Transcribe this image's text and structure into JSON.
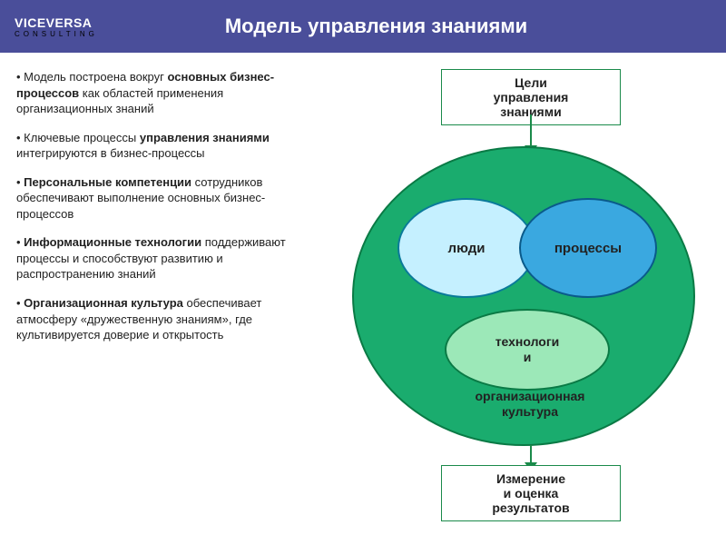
{
  "header": {
    "logo": "VICEVERSA",
    "logo_sub": "CONSULTING",
    "title": "Модель управления знаниями",
    "bg_color": "#4a4e9a",
    "text_color": "#ffffff"
  },
  "bullets": [
    {
      "prefix": "• Модель построена вокруг ",
      "bold": "основных бизнес-процессов",
      "suffix": " как областей применения организационных знаний"
    },
    {
      "prefix": "• Ключевые процессы ",
      "bold": "управления знаниями",
      "suffix": " интегрируются в бизнес-процессы"
    },
    {
      "prefix": "• ",
      "bold": "Персональные компетенции",
      "suffix": " сотрудников обеспечивают выполнение основных бизнес-процессов"
    },
    {
      "prefix": "• ",
      "bold": "Информационные технологии",
      "suffix": " поддерживают процессы и способствуют развитию и распространению знаний"
    },
    {
      "prefix": "• ",
      "bold": "Организационная культура",
      "suffix": " обеспечивает атмосферу «дружественную знаниям», где культивируется доверие и открытость"
    }
  ],
  "diagram": {
    "top_box": "Цели\nуправления\nзнаниями",
    "bottom_box": "Измерение\nи оценка\nрезультатов",
    "oval_people": "люди",
    "oval_process": "процессы",
    "oval_tech": "технологи\nи",
    "org_label": "организационная\nкультура",
    "colors": {
      "big_oval_fill": "#1aac6e",
      "big_oval_border": "#0a7a45",
      "people_fill": "#c5f0ff",
      "people_border": "#0a7a9a",
      "proc_fill": "#3aa8e0",
      "proc_border": "#0a5a8a",
      "tech_fill": "#9ce8b8",
      "tech_border": "#0a7a45",
      "box_border": "#1a8a4a",
      "arrow_color": "#1a8a4a"
    }
  }
}
